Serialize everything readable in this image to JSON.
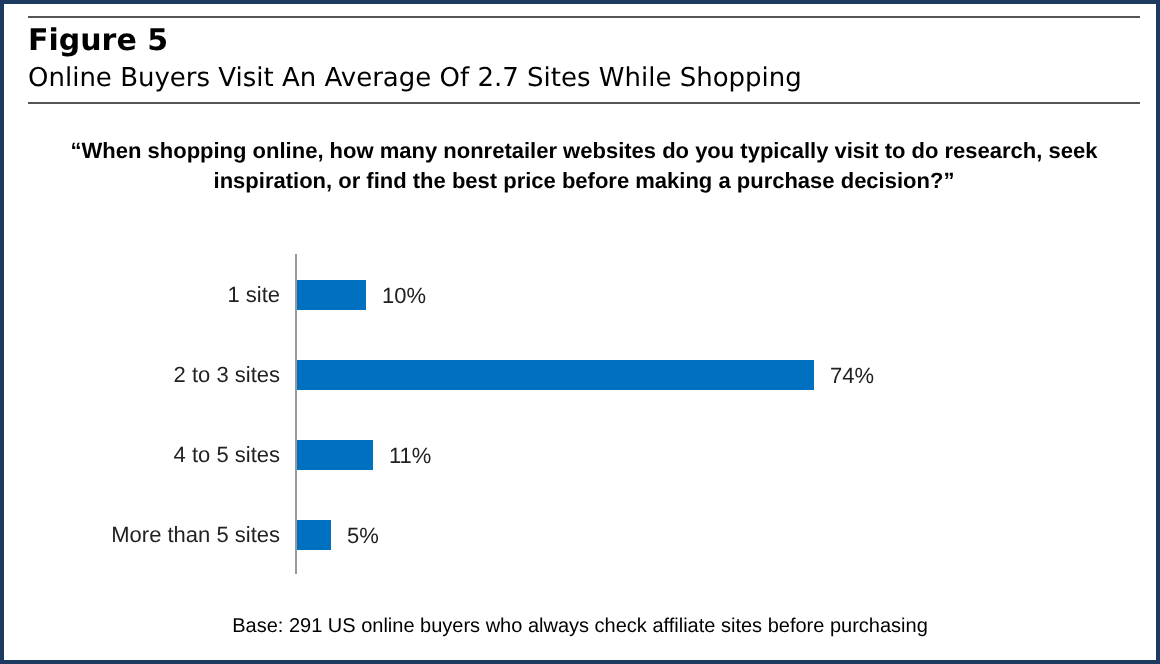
{
  "chart_data": {
    "type": "bar",
    "orientation": "horizontal",
    "title": "Figure 5",
    "subtitle": "Online Buyers Visit An Average Of 2.7 Sites While Shopping",
    "annotations": [
      "“When shopping online, how many nonretailer websites do you typically visit to do research, seek inspiration, or find the best price before making a purchase decision?”",
      "Base: 291 US online buyers who always check affiliate sites before purchasing"
    ],
    "categories": [
      "1 site",
      "2 to 3 sites",
      "4 to 5 sites",
      "More than 5 sites"
    ],
    "values": [
      10,
      74,
      11,
      5
    ],
    "value_labels": [
      "10%",
      "74%",
      "11%",
      "5%"
    ],
    "color": "#0070c0",
    "grid": false,
    "legend": false
  }
}
